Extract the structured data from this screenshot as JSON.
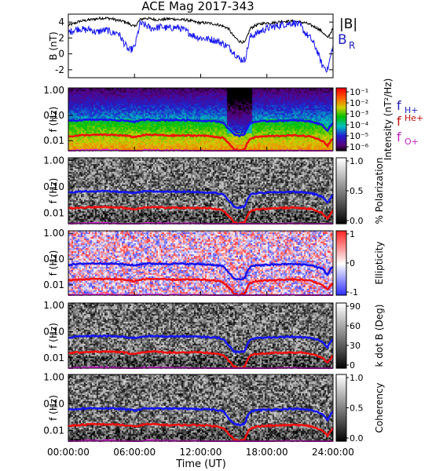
{
  "title": "ACE Mag 2017-343",
  "x_axis": {
    "ticks": [
      "00:00:00",
      "06:00:00",
      "12:00:00",
      "18:00:00",
      "24:00:00"
    ],
    "tick_hours": [
      0,
      6,
      12,
      18,
      24
    ],
    "label": "Time (UT)"
  },
  "freq_ticks": [
    "1.00",
    "0.10",
    "0.01"
  ],
  "freq_tick_values": [
    1.0,
    0.1,
    0.01
  ],
  "colors": {
    "black": "#000000",
    "blue": "#1515f0",
    "red": "#f01010",
    "magenta": "#e020e0",
    "label_blue": "#2020c0",
    "label_red": "#c01010",
    "label_magenta": "#c020c0"
  },
  "legend_b": {
    "total": "|B|",
    "radial": "B",
    "radial_sub": "R"
  },
  "cyclotron_labels": [
    {
      "base": "f",
      "sub": "H+"
    },
    {
      "base": "f",
      "sub": "He+"
    },
    {
      "base": "f",
      "sub": "O+"
    }
  ],
  "chart_data": [
    {
      "type": "line",
      "title": "ACE Mag 2017-343",
      "ylabel": "B (nT)",
      "ylim": [
        -3,
        5
      ],
      "yticks": [
        "4",
        "2",
        "0",
        "-2"
      ],
      "ytick_values": [
        4,
        2,
        0,
        -2
      ],
      "x": [
        0,
        0.5,
        1,
        1.5,
        2,
        2.5,
        3,
        3.5,
        4,
        4.5,
        5,
        5.5,
        6,
        6.5,
        7,
        7.5,
        8,
        8.5,
        9,
        9.5,
        10,
        10.5,
        11,
        11.5,
        12,
        12.5,
        13,
        13.5,
        14,
        14.5,
        15,
        15.5,
        16,
        16.5,
        17,
        17.5,
        18,
        18.5,
        19,
        19.5,
        20,
        20.5,
        21,
        21.5,
        22,
        22.5,
        23,
        23.5,
        24
      ],
      "series": [
        {
          "name": "|B|",
          "values": [
            3.6,
            3.8,
            4.1,
            4.2,
            4.3,
            4.4,
            4.5,
            4.5,
            4.4,
            4.2,
            4.1,
            3.8,
            3.4,
            4.3,
            4.5,
            4.4,
            4.3,
            4.3,
            4.4,
            4.4,
            4.3,
            4.3,
            4.2,
            4.0,
            3.9,
            3.9,
            3.8,
            3.7,
            3.5,
            3.2,
            2.2,
            1.6,
            1.4,
            3.2,
            3.6,
            3.8,
            3.9,
            3.9,
            4.0,
            4.1,
            4.1,
            4.1,
            4.0,
            3.9,
            3.6,
            3.3,
            2.8,
            2.0,
            3.2
          ]
        },
        {
          "name": "B_R",
          "values": [
            2.7,
            3.0,
            3.2,
            3.0,
            3.1,
            2.7,
            2.9,
            3.0,
            2.6,
            2.7,
            1.5,
            0.4,
            0.8,
            3.8,
            3.6,
            3.2,
            3.3,
            3.4,
            3.2,
            3.3,
            3.3,
            3.0,
            2.6,
            2.2,
            2.0,
            1.9,
            1.8,
            1.6,
            1.3,
            0.9,
            0.2,
            -0.6,
            -0.8,
            2.2,
            2.5,
            2.9,
            3.2,
            3.4,
            3.5,
            3.7,
            3.8,
            3.9,
            3.6,
            2.6,
            1.9,
            0.6,
            -1.4,
            -2.0,
            1.0
          ]
        }
      ]
    },
    {
      "type": "heatmap",
      "ylabel": "f (Hz)",
      "colorbar_label": "Intensity (nT²/Hz)",
      "colorbar_ticks": [
        "10⁻¹",
        "10⁻²",
        "10⁻³",
        "10⁻⁴",
        "10⁻⁵",
        "10⁻⁶"
      ],
      "colorbar_range": [
        -6.5,
        -0.8
      ]
    },
    {
      "type": "heatmap",
      "ylabel": "f (Hz)",
      "colorbar_label": "% Polarization",
      "colorbar_ticks": [
        "1.0",
        "0.5",
        "0.0"
      ],
      "colorbar_range": [
        0,
        1
      ]
    },
    {
      "type": "heatmap",
      "ylabel": "f (Hz)",
      "colorbar_label": "Ellipticity",
      "colorbar_ticks": [
        "1",
        "0",
        "-1"
      ],
      "colorbar_range": [
        -1,
        1
      ]
    },
    {
      "type": "heatmap",
      "ylabel": "f (Hz)",
      "colorbar_label": "k dot B (Deg)",
      "colorbar_ticks": [
        "90",
        "60",
        "30",
        "0"
      ],
      "colorbar_range": [
        0,
        90
      ]
    },
    {
      "type": "heatmap",
      "ylabel": "f (Hz)",
      "colorbar_label": "Coherency",
      "colorbar_ticks": [
        "1.0",
        "0.5",
        "0.0"
      ],
      "colorbar_range": [
        0,
        1
      ]
    }
  ],
  "cyclotron_curves": {
    "x": [
      0,
      1,
      2,
      3,
      4,
      5,
      6,
      7,
      8,
      9,
      10,
      11,
      12,
      13,
      14,
      14.5,
      15,
      15.5,
      16,
      16.5,
      17,
      18,
      19,
      20,
      21,
      22,
      23,
      23.5,
      24
    ],
    "H_plus": [
      0.06,
      0.065,
      0.068,
      0.068,
      0.067,
      0.063,
      0.057,
      0.068,
      0.066,
      0.066,
      0.066,
      0.065,
      0.063,
      0.061,
      0.054,
      0.03,
      0.018,
      0.016,
      0.018,
      0.05,
      0.057,
      0.06,
      0.062,
      0.064,
      0.063,
      0.058,
      0.042,
      0.025,
      0.05
    ],
    "He_plus": [
      0.015,
      0.016,
      0.017,
      0.017,
      0.017,
      0.016,
      0.014,
      0.017,
      0.017,
      0.016,
      0.016,
      0.016,
      0.016,
      0.015,
      0.013,
      0.008,
      0.0046,
      0.004,
      0.0046,
      0.012,
      0.014,
      0.015,
      0.0155,
      0.016,
      0.016,
      0.0145,
      0.01,
      0.0063,
      0.012
    ],
    "O_plus": [
      0.0038,
      0.0041,
      0.0042,
      0.0042,
      0.0042,
      0.004,
      0.0036,
      0.0042,
      0.0042,
      0.0041,
      0.0041,
      0.004,
      0.004,
      0.0038,
      0.0034,
      0.0026,
      0.0026,
      0.0026,
      0.0026,
      0.003,
      0.0036,
      0.0038,
      0.0039,
      0.004,
      0.004,
      0.0036,
      0.0027,
      0.0026,
      0.003
    ]
  }
}
